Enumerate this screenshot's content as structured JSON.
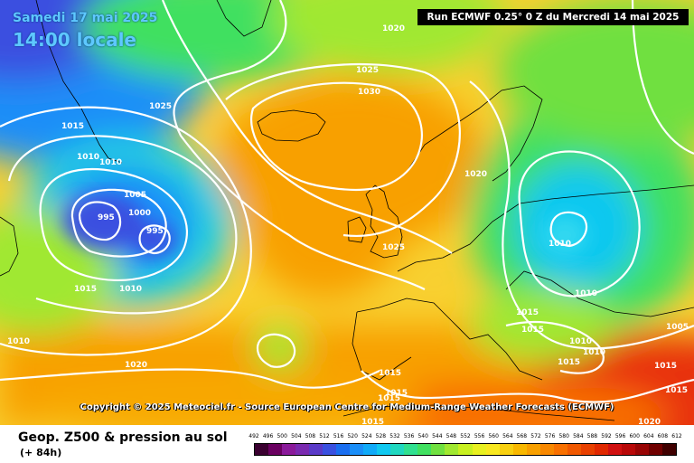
{
  "header": {
    "date": "Samedi 17 mai 2025",
    "time": "14:00 locale",
    "run": "Run ECMWF 0.25° 0 Z du Mercredi 14 mai 2025"
  },
  "copyright": "Copyright © 2025 Meteociel.fr - Source European Centre for Medium-Range Weather Forecasts (ECMWF)",
  "footer": {
    "caption": "Geop. Z500 & pression au sol",
    "lead": "(+ 84h)"
  },
  "legend": {
    "ticks": [
      "492",
      "496",
      "500",
      "504",
      "508",
      "512",
      "516",
      "520",
      "524",
      "528",
      "532",
      "536",
      "540",
      "544",
      "548",
      "552",
      "556",
      "560",
      "564",
      "568",
      "572",
      "576",
      "580",
      "584",
      "588",
      "592",
      "596",
      "600",
      "604",
      "608",
      "612"
    ],
    "colors": [
      "#3a0030",
      "#6a0060",
      "#8a1a9a",
      "#7a2ab0",
      "#5a3ac8",
      "#3a50e0",
      "#1a6ef0",
      "#1a8ef8",
      "#10aaf8",
      "#10c8f0",
      "#20d8c0",
      "#30e090",
      "#40e060",
      "#70e040",
      "#a0e830",
      "#c8f020",
      "#e8f020",
      "#f8e820",
      "#f8d010",
      "#f8b800",
      "#f8a000",
      "#f88800",
      "#f87000",
      "#f05800",
      "#e84000",
      "#e02800",
      "#d01010",
      "#b80808",
      "#980404",
      "#700000",
      "#400000"
    ]
  },
  "isobars": [
    {
      "label": "1020",
      "key": "1020-a"
    },
    {
      "label": "1025",
      "key": "1025-a"
    },
    {
      "label": "1030",
      "key": "1030-a"
    },
    {
      "label": "1025",
      "key": "1025-b"
    },
    {
      "label": "1015",
      "key": "1015-a"
    },
    {
      "label": "1010",
      "key": "1010-a"
    },
    {
      "label": "1010",
      "key": "1010-b"
    },
    {
      "label": "1005",
      "key": "1005-a"
    },
    {
      "label": "1000",
      "key": "1000-a"
    },
    {
      "label": "995",
      "key": "995-a"
    },
    {
      "label": "995",
      "key": "995-b"
    },
    {
      "label": "1015",
      "key": "1015-b"
    },
    {
      "label": "1010",
      "key": "1010-c"
    },
    {
      "label": "1010",
      "key": "1010-d"
    },
    {
      "label": "1020",
      "key": "1020-b"
    },
    {
      "label": "1020",
      "key": "1020-c"
    },
    {
      "label": "1025",
      "key": "1025-c"
    },
    {
      "label": "1010",
      "key": "1010-e"
    },
    {
      "label": "1010",
      "key": "1010-f"
    },
    {
      "label": "1015",
      "key": "1015-c"
    },
    {
      "label": "1015",
      "key": "1015-d"
    },
    {
      "label": "1010",
      "key": "1010-g"
    },
    {
      "label": "1010",
      "key": "1010-h"
    },
    {
      "label": "1015",
      "key": "1015-e"
    },
    {
      "label": "1005",
      "key": "1005-b"
    },
    {
      "label": "1015",
      "key": "1015-f"
    },
    {
      "label": "1015",
      "key": "1015-g"
    },
    {
      "label": "1015",
      "key": "1015-h"
    },
    {
      "label": "1015",
      "key": "1015-i"
    },
    {
      "label": "1015",
      "key": "1015-j"
    },
    {
      "label": "1015",
      "key": "1015-k"
    },
    {
      "label": "1020",
      "key": "1020-d"
    }
  ]
}
